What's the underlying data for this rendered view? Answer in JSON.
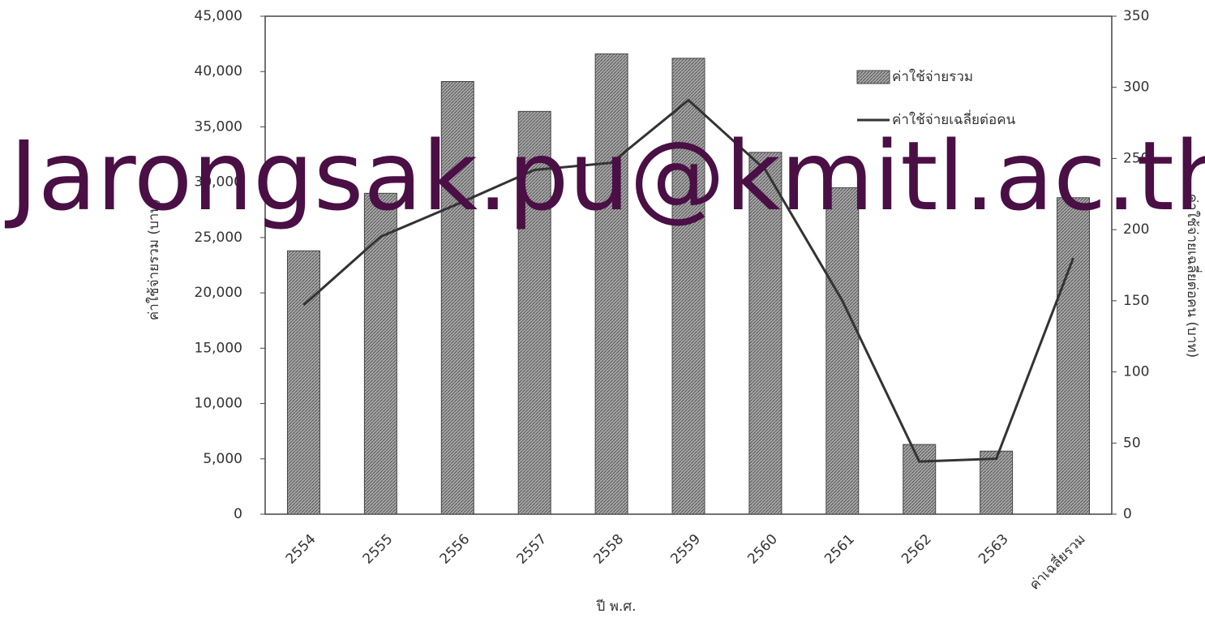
{
  "chart_data": {
    "type": "bar",
    "watermark": "Jarongsak.pu@kmitl.ac.th",
    "xlabel": "ปี พ.ศ.",
    "ylabel": "ค่าใช้จ่ายรวม (บาท)",
    "y2label": "ค่าใช้จ่ายเฉลี่ยต่อคน (บาท)",
    "categories": [
      "2554",
      "2555",
      "2556",
      "2557",
      "2558",
      "2559",
      "2560",
      "2561",
      "2562",
      "2563",
      "ค่าเฉลี่ยรวม"
    ],
    "series": [
      {
        "name": "ค่าใช้จ่ายรวม",
        "type": "bar",
        "color": "#a8a8a8",
        "values": [
          23800,
          29000,
          39100,
          36400,
          41600,
          41200,
          32700,
          29500,
          6300,
          5700,
          28600
        ]
      },
      {
        "name": "ค่าใช้จ่ายเฉลี่ยต่อคน",
        "type": "line",
        "axis": "y2",
        "color": "#333333",
        "values": [
          147,
          195,
          218,
          242,
          247,
          291,
          242,
          150,
          37,
          39,
          180
        ]
      }
    ],
    "ylim": [
      0,
      45000
    ],
    "yticks": [
      0,
      {
        "value": 5000,
        "label": "5,000"
      },
      {
        "value": 10000,
        "label": "10,000"
      },
      {
        "value": 15000,
        "label": "15,000"
      },
      {
        "value": 20000,
        "label": "20,000"
      },
      {
        "value": 25000,
        "label": "25,000"
      },
      {
        "value": 30000,
        "label": "30,000"
      },
      {
        "value": 35000,
        "label": "35,000"
      },
      {
        "value": 40000,
        "label": "40,000"
      },
      {
        "value": 45000,
        "label": "45,000"
      }
    ],
    "y2lim": [
      0,
      350
    ],
    "y2ticks": [
      0,
      50,
      100,
      150,
      200,
      250,
      300,
      350
    ],
    "legend": "upper right"
  }
}
